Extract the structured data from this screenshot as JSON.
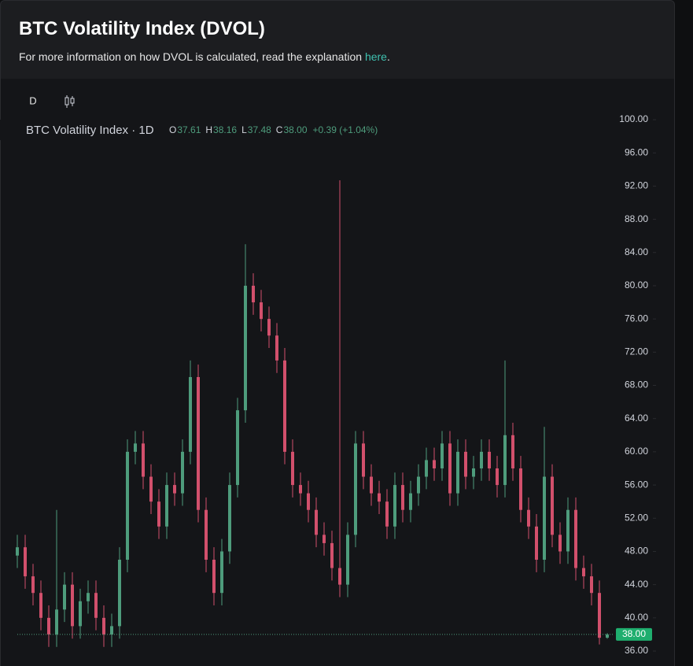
{
  "header": {
    "title": "BTC Volatility Index (DVOL)",
    "subtitle": "For more information on how DVOL is calculated, read the explanation",
    "link": "here",
    "link_end": "."
  },
  "toolbar": {
    "interval": "D"
  },
  "chart_data": {
    "type": "candlestick",
    "title": "BTC Volatility Index · 1D",
    "legend": [
      {
        "label": "O",
        "value": "37.61"
      },
      {
        "label": "H",
        "value": "38.16"
      },
      {
        "label": "L",
        "value": "37.48"
      },
      {
        "label": "C",
        "value": "38.00"
      }
    ],
    "change": "+0.39 (+1.04%)",
    "up_color": "#4e9c7c",
    "down_color": "#d2506c",
    "open": [
      47.5,
      48.5,
      45,
      43,
      40,
      38,
      41,
      44,
      39,
      42,
      43,
      40,
      38,
      39,
      47,
      60,
      61,
      57,
      54,
      51,
      56,
      55,
      60,
      69,
      53,
      47,
      43,
      48,
      56,
      65,
      80,
      78,
      76,
      74,
      71,
      60,
      56,
      55,
      53,
      50,
      49,
      46,
      44,
      50,
      61,
      57,
      55,
      54,
      51,
      56,
      53,
      55,
      57,
      59,
      58,
      61,
      55,
      60,
      57,
      58,
      60,
      58,
      56,
      62,
      58,
      53,
      51,
      47,
      57,
      50,
      48,
      53,
      46,
      45,
      43,
      37.61
    ],
    "high": [
      50,
      50,
      46.5,
      44.5,
      41.5,
      53,
      45.5,
      45.5,
      43.5,
      44.5,
      44.5,
      41.5,
      40.5,
      48.5,
      61.5,
      62.5,
      62.5,
      58.5,
      55.5,
      57.5,
      57.5,
      61.5,
      71,
      70.5,
      54.5,
      48.5,
      49.5,
      57.5,
      66.5,
      85,
      81.5,
      79.5,
      77.5,
      75.5,
      72.5,
      61.5,
      57.5,
      56.5,
      54.5,
      51.5,
      50.5,
      92.7,
      51.5,
      62.5,
      62.5,
      58.5,
      56.5,
      55.5,
      57.5,
      57.5,
      56.5,
      58.5,
      60.5,
      60.5,
      62.5,
      62.5,
      61.5,
      61.5,
      59.5,
      61.5,
      61.5,
      59.5,
      71,
      63.5,
      59.5,
      54.5,
      52.5,
      63,
      58.5,
      51.5,
      54.5,
      54.5,
      47.5,
      46.5,
      44.5,
      38.16
    ],
    "low": [
      46,
      43.5,
      41.5,
      38.5,
      36.5,
      36.5,
      39.5,
      37.5,
      37.5,
      40.5,
      38.5,
      36.5,
      36.5,
      37.5,
      45.5,
      58.5,
      55.5,
      52.5,
      49.5,
      49.5,
      53.5,
      53.5,
      58.5,
      51.5,
      45.5,
      41.5,
      41.5,
      46.5,
      54.5,
      63.5,
      76.5,
      74.5,
      72.5,
      69.5,
      58.5,
      54.5,
      53.5,
      51.5,
      48.5,
      47.5,
      44.5,
      42.5,
      42.5,
      48.5,
      55.5,
      53.5,
      52.5,
      49.5,
      49.5,
      51.5,
      51.5,
      53.5,
      55.5,
      56.5,
      56.5,
      53.5,
      53.5,
      55.5,
      55.5,
      56.5,
      56.5,
      54.5,
      54.5,
      56.5,
      51.5,
      49.5,
      45.5,
      45.5,
      48.5,
      46.5,
      46.5,
      44.5,
      43.5,
      41.5,
      36.8,
      37.48
    ],
    "close": [
      48.5,
      45,
      43,
      40,
      38,
      41,
      44,
      39,
      42,
      43,
      40,
      38,
      39,
      47,
      60,
      61,
      57,
      54,
      51,
      56,
      55,
      60,
      69,
      53,
      47,
      43,
      48,
      56,
      65,
      80,
      78,
      76,
      74,
      71,
      60,
      56,
      55,
      53,
      50,
      49,
      46,
      44,
      50,
      61,
      57,
      55,
      54,
      51,
      56,
      53,
      55,
      57,
      59,
      58,
      61,
      55,
      60,
      57,
      58,
      60,
      58,
      56,
      62,
      58,
      53,
      51,
      47,
      57,
      50,
      48,
      53,
      46,
      45,
      43,
      37.6,
      38
    ],
    "last_price": {
      "value": 38,
      "label": "38.00"
    },
    "ylim": [
      34.2,
      101.14
    ],
    "yticks": [
      {
        "value": 36,
        "label": "36.00"
      },
      {
        "value": 40,
        "label": "40.00"
      },
      {
        "value": 44,
        "label": "44.00"
      },
      {
        "value": 48,
        "label": "48.00"
      },
      {
        "value": 52,
        "label": "52.00"
      },
      {
        "value": 56,
        "label": "56.00"
      },
      {
        "value": 60,
        "label": "60.00"
      },
      {
        "value": 64,
        "label": "64.00"
      },
      {
        "value": 68,
        "label": "68.00"
      },
      {
        "value": 72,
        "label": "72.00"
      },
      {
        "value": 76,
        "label": "76.00"
      },
      {
        "value": 80,
        "label": "80.00"
      },
      {
        "value": 84,
        "label": "84.00"
      },
      {
        "value": 88,
        "label": "88.00"
      },
      {
        "value": 92,
        "label": "92.00"
      },
      {
        "value": 96,
        "label": "96.00"
      },
      {
        "value": 100,
        "label": "100.00"
      }
    ]
  }
}
